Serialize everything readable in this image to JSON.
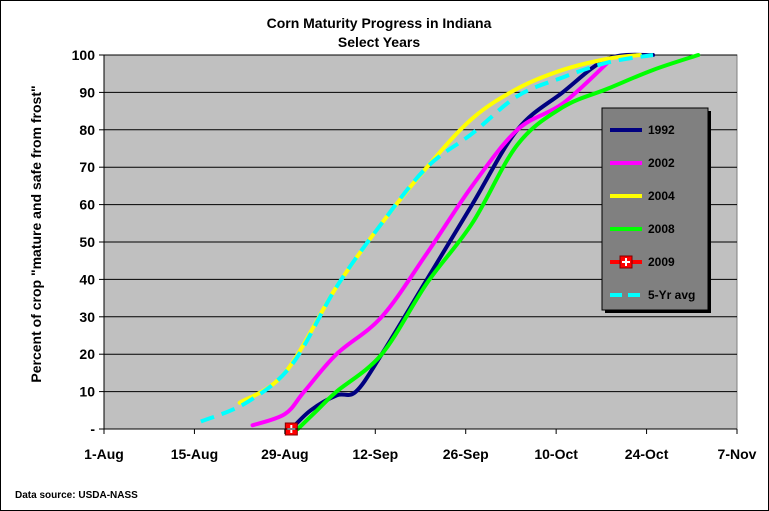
{
  "chart_data": {
    "type": "line",
    "title": "Corn Maturity Progress in Indiana",
    "subtitle": "Select Years",
    "ylabel": "Percent of crop \"mature and safe from frost\"",
    "xlabel": "",
    "source": "Data source: USDA-NASS",
    "x_axis": {
      "type": "date",
      "min": "2009-08-01",
      "max": "2009-11-07",
      "ticks": [
        "1-Aug",
        "15-Aug",
        "29-Aug",
        "12-Sep",
        "26-Sep",
        "10-Oct",
        "24-Oct",
        "7-Nov"
      ]
    },
    "y_axis": {
      "min": 0,
      "max": 100,
      "step": 10,
      "ticks": [
        "-",
        "10",
        "20",
        "30",
        "40",
        "50",
        "60",
        "70",
        "80",
        "90",
        "100"
      ]
    },
    "grid": true,
    "legend_position": "right",
    "colors": {
      "plot_background": "#c0c0c0",
      "legend_background": "#808080"
    },
    "series": [
      {
        "name": "1992",
        "color": "#000080",
        "dash": false,
        "marker": "none",
        "points": [
          [
            "2009-08-30",
            0
          ],
          [
            "2009-09-02",
            5
          ],
          [
            "2009-09-06",
            9
          ],
          [
            "2009-09-09",
            10
          ],
          [
            "2009-09-13",
            20
          ],
          [
            "2009-09-20",
            40
          ],
          [
            "2009-09-27",
            60
          ],
          [
            "2009-10-04",
            80
          ],
          [
            "2009-10-11",
            90
          ],
          [
            "2009-10-18",
            99
          ],
          [
            "2009-10-25",
            100
          ]
        ]
      },
      {
        "name": "2002",
        "color": "#ff00ff",
        "dash": false,
        "marker": "none",
        "points": [
          [
            "2009-08-24",
            1
          ],
          [
            "2009-08-29",
            4
          ],
          [
            "2009-09-01",
            10
          ],
          [
            "2009-09-06",
            20
          ],
          [
            "2009-09-13",
            30
          ],
          [
            "2009-09-20",
            47
          ],
          [
            "2009-09-27",
            65
          ],
          [
            "2009-10-04",
            80
          ],
          [
            "2009-10-11",
            87
          ],
          [
            "2009-10-18",
            98
          ]
        ]
      },
      {
        "name": "2004",
        "color": "#ffff00",
        "dash": false,
        "marker": "none",
        "points": [
          [
            "2009-08-22",
            7
          ],
          [
            "2009-08-29",
            15
          ],
          [
            "2009-09-06",
            38
          ],
          [
            "2009-09-13",
            55
          ],
          [
            "2009-09-20",
            70
          ],
          [
            "2009-09-27",
            83
          ],
          [
            "2009-10-04",
            91
          ],
          [
            "2009-10-11",
            96
          ],
          [
            "2009-10-18",
            99
          ],
          [
            "2009-10-23",
            100
          ]
        ]
      },
      {
        "name": "2008",
        "color": "#00ff00",
        "dash": false,
        "marker": "none",
        "points": [
          [
            "2009-08-31",
            0
          ],
          [
            "2009-09-03",
            5
          ],
          [
            "2009-09-06",
            10
          ],
          [
            "2009-09-13",
            20
          ],
          [
            "2009-09-20",
            39
          ],
          [
            "2009-09-27",
            55
          ],
          [
            "2009-10-04",
            76
          ],
          [
            "2009-10-11",
            86
          ],
          [
            "2009-10-18",
            91
          ],
          [
            "2009-10-25",
            96
          ],
          [
            "2009-11-01",
            100
          ]
        ]
      },
      {
        "name": "2009",
        "color": "#ff0000",
        "dash": false,
        "marker": "square-cross",
        "points": [
          [
            "2009-08-30",
            0
          ]
        ]
      },
      {
        "name": "5-Yr avg",
        "color": "#00ffff",
        "dash": true,
        "marker": "none",
        "points": [
          [
            "2009-08-16",
            2
          ],
          [
            "2009-08-23",
            7
          ],
          [
            "2009-08-30",
            17
          ],
          [
            "2009-09-06",
            38
          ],
          [
            "2009-09-13",
            55
          ],
          [
            "2009-09-20",
            70
          ],
          [
            "2009-09-27",
            79
          ],
          [
            "2009-10-04",
            89
          ],
          [
            "2009-10-11",
            94
          ],
          [
            "2009-10-18",
            98
          ],
          [
            "2009-10-25",
            100
          ]
        ]
      }
    ]
  }
}
